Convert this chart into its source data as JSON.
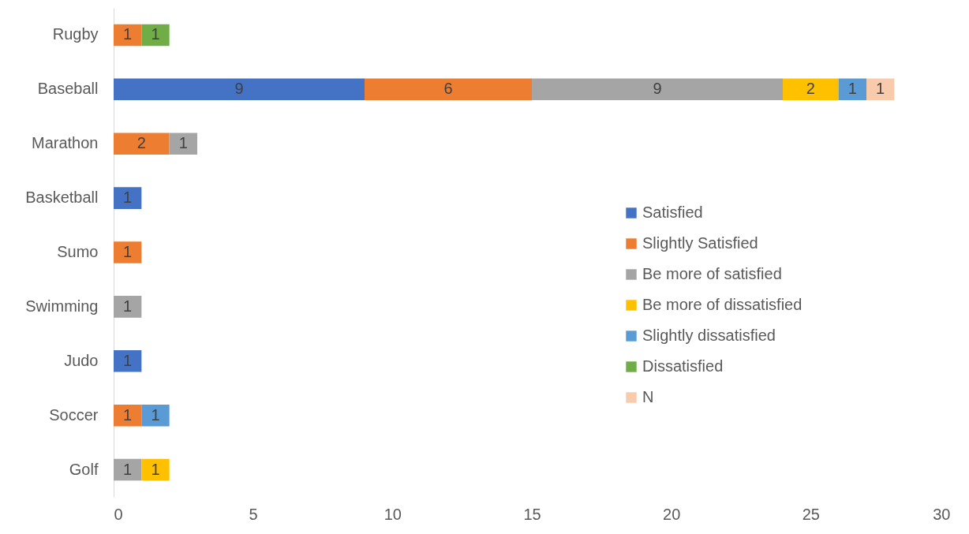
{
  "chart_data": {
    "type": "bar",
    "orientation": "horizontal",
    "stacked": true,
    "data_labels": true,
    "legend": "right",
    "grid": false,
    "categories": [
      "Rugby",
      "Baseball",
      "Marathon",
      "Basketball",
      "Sumo",
      "Swimming",
      "Judo",
      "Soccer",
      "Golf"
    ],
    "xlim": [
      0,
      30
    ],
    "xticks": [
      0,
      5,
      10,
      15,
      20,
      25,
      30
    ],
    "series": [
      {
        "name": "Satisfied",
        "color": "#4472c4",
        "values": [
          null,
          9,
          null,
          1,
          null,
          null,
          1,
          null,
          null
        ]
      },
      {
        "name": "Slightly Satisfied",
        "color": "#ed7d31",
        "values": [
          1,
          6,
          2,
          null,
          1,
          null,
          null,
          1,
          null
        ]
      },
      {
        "name": "Be more of satisfied",
        "color": "#a5a5a5",
        "values": [
          null,
          9,
          1,
          null,
          null,
          1,
          null,
          null,
          1
        ]
      },
      {
        "name": "Be more of dissatisfied",
        "color": "#ffc000",
        "values": [
          null,
          2,
          null,
          null,
          null,
          null,
          null,
          null,
          1
        ]
      },
      {
        "name": "Slightly dissatisfied",
        "color": "#5b9bd5",
        "values": [
          null,
          1,
          null,
          null,
          null,
          null,
          null,
          1,
          null
        ]
      },
      {
        "name": "Dissatisfied",
        "color": "#70ad47",
        "values": [
          1,
          null,
          null,
          null,
          null,
          null,
          null,
          null,
          null
        ]
      },
      {
        "name": "N",
        "color": "#f8cbad",
        "values": [
          null,
          1,
          null,
          null,
          null,
          null,
          null,
          null,
          null
        ]
      }
    ]
  }
}
